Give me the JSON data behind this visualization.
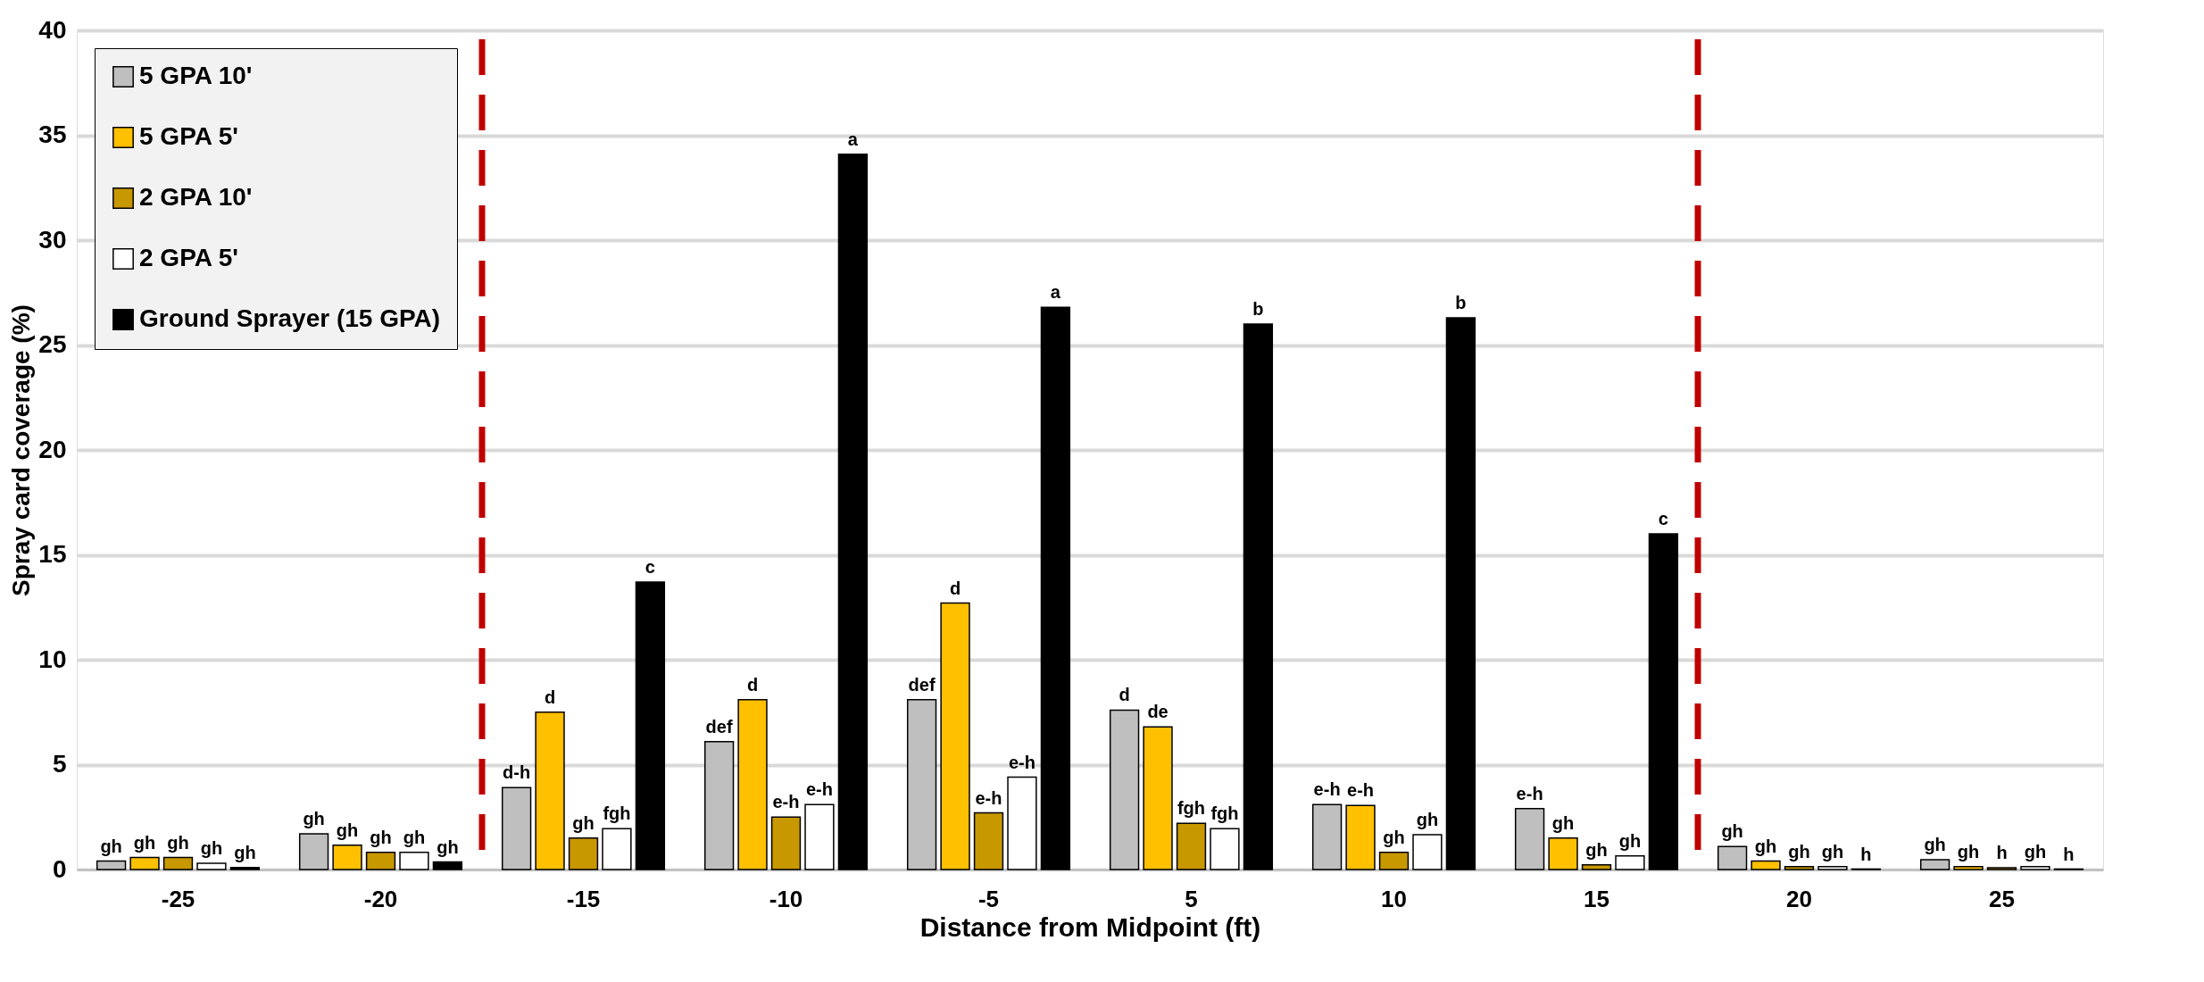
{
  "chart_data": {
    "type": "bar",
    "xlabel": "Distance from Midpoint (ft)",
    "ylabel": "Spray card coverage (%)",
    "categories": [
      "-25",
      "-20",
      "-15",
      "-10",
      "-5",
      "5",
      "10",
      "15",
      "20",
      "25"
    ],
    "ylim": [
      0,
      40
    ],
    "yticks": [
      0,
      5,
      10,
      15,
      20,
      25,
      30,
      35,
      40
    ],
    "grid": "y",
    "legend": "top left",
    "series": [
      {
        "name": "5 GPA 10'",
        "color": "#bfbfbf",
        "values": [
          0.4,
          1.7,
          3.9,
          6.1,
          8.1,
          7.6,
          3.1,
          2.9,
          1.1,
          0.47
        ],
        "value_labels": [
          "gh",
          "gh",
          "d-h",
          "def",
          "def",
          "d",
          "e-h",
          "e-h",
          "gh",
          "gh"
        ]
      },
      {
        "name": "5 GPA 5'",
        "color": "#ffc000",
        "values": [
          0.57,
          1.16,
          7.5,
          8.1,
          12.7,
          6.8,
          3.05,
          1.5,
          0.4,
          0.14
        ],
        "value_labels": [
          "gh",
          "gh",
          "d",
          "d",
          "d",
          "de",
          "e-h",
          "gh",
          "gh",
          "gh"
        ]
      },
      {
        "name": "2 GPA 10'",
        "color": "#c89800",
        "values": [
          0.57,
          0.82,
          1.5,
          2.5,
          2.7,
          2.2,
          0.82,
          0.22,
          0.14,
          0.08
        ],
        "value_labels": [
          "gh",
          "gh",
          "gh",
          "e-h",
          "e-h",
          "fgh",
          "gh",
          "gh",
          "gh",
          "h"
        ]
      },
      {
        "name": "2 GPA 5'",
        "color": "#ffffff",
        "values": [
          0.3,
          0.82,
          1.95,
          3.1,
          4.4,
          1.95,
          1.66,
          0.65,
          0.14,
          0.14
        ],
        "value_labels": [
          "gh",
          "gh",
          "fgh",
          "e-h",
          "e-h",
          "fgh",
          "gh",
          "gh",
          "gh",
          "gh"
        ]
      },
      {
        "name": "Ground Sprayer (15 GPA)",
        "color": "#000000",
        "values": [
          0.1,
          0.36,
          13.7,
          34.1,
          26.8,
          26.0,
          26.3,
          16.0,
          0.02,
          0.02
        ],
        "value_labels": [
          "gh",
          "gh",
          "c",
          "a",
          "a",
          "b",
          "b",
          "c",
          "h",
          "h"
        ]
      }
    ]
  }
}
